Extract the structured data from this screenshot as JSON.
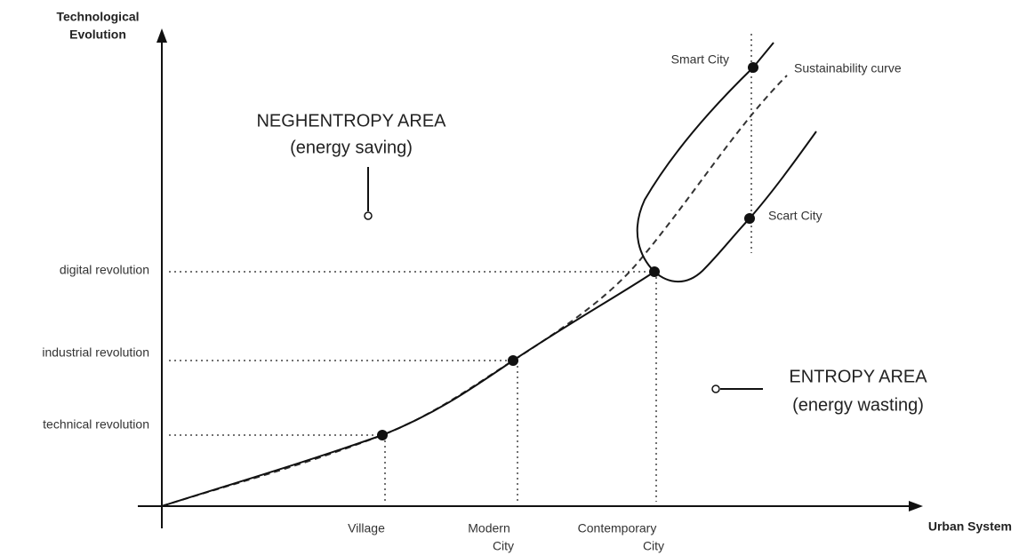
{
  "axes": {
    "y_label": [
      "Technological",
      "Evolution"
    ],
    "x_label": "Urban System"
  },
  "levels": [
    "digital revolution",
    "industrial revolution",
    "technical revolution"
  ],
  "stages": [
    [
      "Village"
    ],
    [
      "Modern",
      "City"
    ],
    [
      "Contemporary",
      "City"
    ]
  ],
  "points": {
    "smart": "Smart City",
    "scart": "Scart City"
  },
  "curve_label": "Sustainability curve",
  "areas": {
    "neghentropy": [
      "NEGHENTROPY AREA",
      "(energy saving)"
    ],
    "entropy": [
      "ENTROPY AREA",
      "(energy wasting)"
    ]
  }
}
